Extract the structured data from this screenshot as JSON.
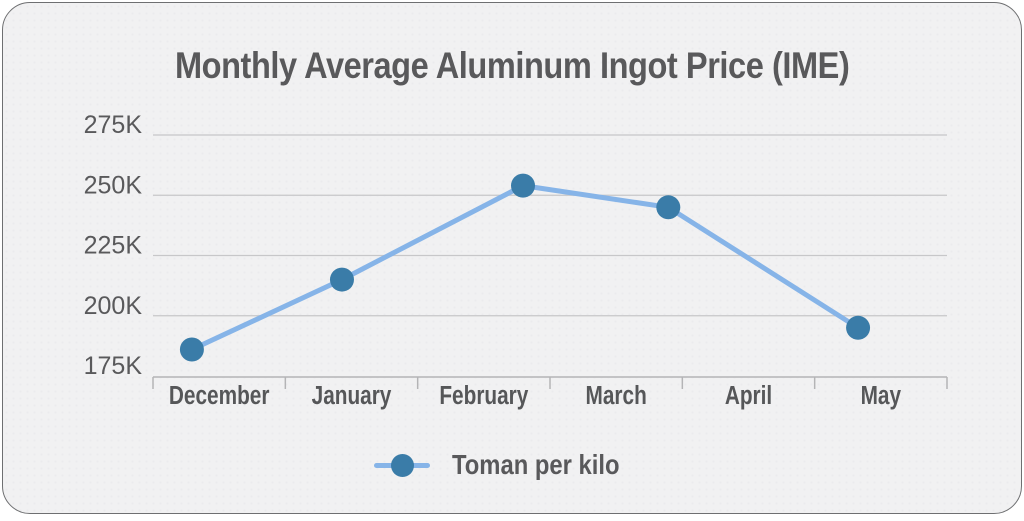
{
  "chart_data": {
    "type": "line",
    "title": "Monthly Average Aluminum Ingot Price (IME)",
    "categories": [
      "December",
      "January",
      "February",
      "March",
      "April",
      "May"
    ],
    "y_ticks": [
      "175K",
      "200K",
      "225K",
      "250K",
      "275K"
    ],
    "y_tick_values": [
      175,
      200,
      225,
      250,
      275
    ],
    "ylim": [
      175000,
      275000
    ],
    "y_unit": "Toman (thousands)",
    "xlabel": "",
    "ylabel": "",
    "grid": "horizontal",
    "legend": {
      "position": "bottom",
      "label": "Toman per kilo"
    },
    "series": [
      {
        "name": "Toman per kilo",
        "values_toman": [
          186000,
          215000,
          254000,
          245000,
          null,
          195000
        ],
        "x_fractions": [
          0.049,
          0.238,
          0.466,
          0.649,
          null,
          0.888
        ]
      }
    ],
    "missing_points": [
      "April"
    ],
    "colors": {
      "line": "#86b4e8",
      "marker": "#3a7ca8",
      "text": "#59595b",
      "gridline": "#c7c7c9",
      "axis": "#b4b4b6",
      "card_background": "#f1f1f2",
      "card_border": "#6e6f71"
    }
  }
}
